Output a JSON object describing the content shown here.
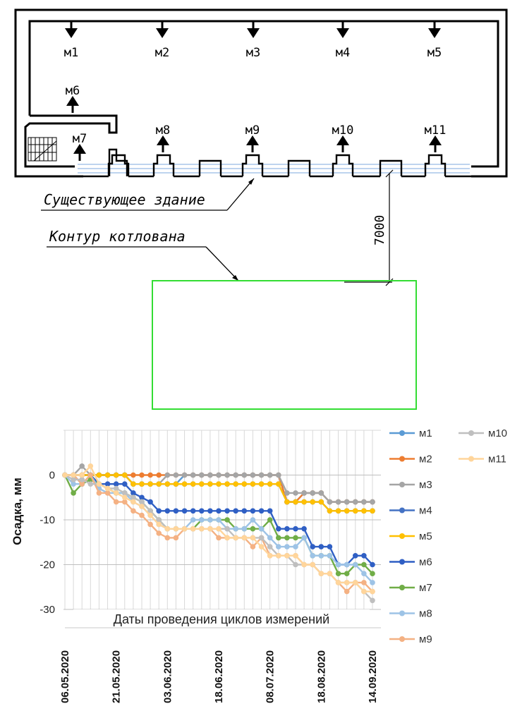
{
  "plan": {
    "marks": [
      {
        "id": "м1",
        "dir": "down"
      },
      {
        "id": "м2",
        "dir": "down"
      },
      {
        "id": "м3",
        "dir": "down"
      },
      {
        "id": "м4",
        "dir": "down"
      },
      {
        "id": "м5",
        "dir": "down"
      },
      {
        "id": "м6",
        "dir": "up"
      },
      {
        "id": "м7",
        "dir": "up"
      },
      {
        "id": "м8",
        "dir": "up"
      },
      {
        "id": "м9",
        "dir": "up"
      },
      {
        "id": "м10",
        "dir": "up"
      },
      {
        "id": "м11",
        "dir": "up"
      }
    ],
    "existing_building_label": "Существующее здание",
    "pit_contour_label": "Контур котлована",
    "dimension_label": "7000",
    "pit_color": "#33dd33",
    "pipe_color": "#a9c6ea"
  },
  "chart_data": {
    "type": "line",
    "xlabel": "Даты проведения циклов измерений",
    "ylabel": "Осадка, мм",
    "ylim": [
      -30,
      10
    ],
    "yticks": [
      0,
      -10,
      -20,
      -30
    ],
    "grid": true,
    "legend_position": "right",
    "date_ticks": [
      "06.05.2020",
      "21.05.2020",
      "03.06.2020",
      "18.06.2020",
      "08.07.2020",
      "18.08.2020",
      "14.09.2020"
    ],
    "date_tick_index": [
      0,
      6,
      12,
      18,
      24,
      30,
      36
    ],
    "n_points": 37,
    "series": [
      {
        "name": "м1",
        "color": "#5b9bd5",
        "values": [
          0,
          0,
          0,
          0,
          0,
          0,
          0,
          0,
          -2,
          -2,
          -2,
          -2,
          -2,
          -2,
          0,
          0,
          0,
          0,
          0,
          0,
          0,
          0,
          0,
          0,
          0,
          0,
          -6,
          -6,
          -4,
          -4,
          -4,
          -6,
          -6,
          -6,
          -6,
          -6,
          -6
        ]
      },
      {
        "name": "м2",
        "color": "#ed7d31",
        "values": [
          0,
          0,
          0,
          0,
          0,
          0,
          0,
          0,
          0,
          0,
          0,
          0,
          0,
          0,
          0,
          0,
          0,
          0,
          0,
          0,
          0,
          0,
          0,
          0,
          0,
          0,
          -6,
          -6,
          -4,
          -4,
          -4,
          -6,
          -6,
          -6,
          -6,
          -6,
          -6
        ]
      },
      {
        "name": "м3",
        "color": "#a5a5a5",
        "values": [
          0,
          0,
          2,
          0,
          0,
          0,
          0,
          0,
          -2,
          -2,
          -2,
          -2,
          0,
          0,
          0,
          0,
          0,
          0,
          0,
          0,
          0,
          0,
          0,
          0,
          0,
          0,
          -4,
          -4,
          -4,
          -4,
          -4,
          -6,
          -6,
          -6,
          -6,
          -6,
          -6
        ]
      },
      {
        "name": "м4",
        "color": "#4472c4",
        "values": [
          0,
          0,
          0,
          0,
          0,
          0,
          0,
          0,
          -2,
          -2,
          -2,
          -2,
          -2,
          -2,
          -2,
          -2,
          -2,
          -2,
          -2,
          -2,
          -2,
          -2,
          -2,
          -2,
          -2,
          -2,
          -6,
          -6,
          -6,
          -6,
          -6,
          -8,
          -8,
          -8,
          -8,
          -8,
          -8
        ]
      },
      {
        "name": "м5",
        "color": "#ffc000",
        "values": [
          0,
          0,
          0,
          0,
          0,
          0,
          0,
          0,
          -2,
          -2,
          -2,
          -2,
          -2,
          -2,
          -2,
          -2,
          -2,
          -2,
          -2,
          -2,
          -2,
          -2,
          -2,
          -2,
          -2,
          -2,
          -6,
          -6,
          -6,
          -6,
          -6,
          -8,
          -8,
          -8,
          -8,
          -8,
          -8
        ]
      },
      {
        "name": "м6",
        "color": "#2f5fc4",
        "values": [
          0,
          0,
          -2,
          0,
          -2,
          -2,
          -2,
          -2,
          -4,
          -5,
          -6,
          -8,
          -8,
          -8,
          -8,
          -8,
          -8,
          -8,
          -8,
          -8,
          -8,
          -8,
          -8,
          -8,
          -8,
          -12,
          -12,
          -12,
          -12,
          -16,
          -16,
          -16,
          -20,
          -20,
          -18,
          -18,
          -20
        ]
      },
      {
        "name": "м7",
        "color": "#70ad47",
        "values": [
          0,
          -4,
          -2,
          -1,
          -2,
          -3,
          -4,
          -4,
          -5,
          -6,
          -8,
          -10,
          -12,
          -12,
          -12,
          -12,
          -10,
          -10,
          -10,
          -10,
          -12,
          -12,
          -12,
          -12,
          -10,
          -14,
          -14,
          -14,
          -14,
          -18,
          -18,
          -18,
          -22,
          -22,
          -20,
          -20,
          -22
        ]
      },
      {
        "name": "м8",
        "color": "#9dc3e6",
        "values": [
          0,
          -2,
          -2,
          0,
          -3,
          -4,
          -4,
          -4,
          -6,
          -7,
          -9,
          -11,
          -12,
          -12,
          -12,
          -10,
          -10,
          -10,
          -10,
          -12,
          -12,
          -12,
          -10,
          -12,
          -14,
          -16,
          -16,
          -16,
          -14,
          -18,
          -18,
          -18,
          -20,
          -20,
          -20,
          -22,
          -24
        ]
      },
      {
        "name": "м9",
        "color": "#f4b183",
        "values": [
          0,
          0,
          -2,
          0,
          -4,
          -4,
          -6,
          -6,
          -8,
          -9,
          -11,
          -13,
          -14,
          -14,
          -12,
          -12,
          -12,
          -12,
          -14,
          -14,
          -14,
          -14,
          -16,
          -14,
          -18,
          -18,
          -18,
          -18,
          -20,
          -20,
          -22,
          -22,
          -24,
          -26,
          -24,
          -24,
          -26
        ]
      },
      {
        "name": "м10",
        "color": "#bfbfbf",
        "values": [
          0,
          -1,
          -1,
          -2,
          -2,
          -3,
          -3,
          -4,
          -5,
          -6,
          -8,
          -10,
          -12,
          -12,
          -12,
          -12,
          -12,
          -12,
          -12,
          -12,
          -14,
          -14,
          -14,
          -14,
          -16,
          -18,
          -18,
          -20,
          -20,
          -20,
          -22,
          -22,
          -24,
          -24,
          -24,
          -26,
          -28
        ]
      },
      {
        "name": "м11",
        "color": "#ffd59b",
        "values": [
          0,
          0,
          0,
          2,
          -2,
          -3,
          -4,
          -5,
          -6,
          -7,
          -9,
          -11,
          -12,
          -12,
          -12,
          -12,
          -12,
          -12,
          -12,
          -14,
          -14,
          -14,
          -14,
          -16,
          -18,
          -18,
          -18,
          -18,
          -20,
          -20,
          -22,
          -22,
          -24,
          -24,
          -24,
          -26,
          -26
        ]
      }
    ]
  }
}
